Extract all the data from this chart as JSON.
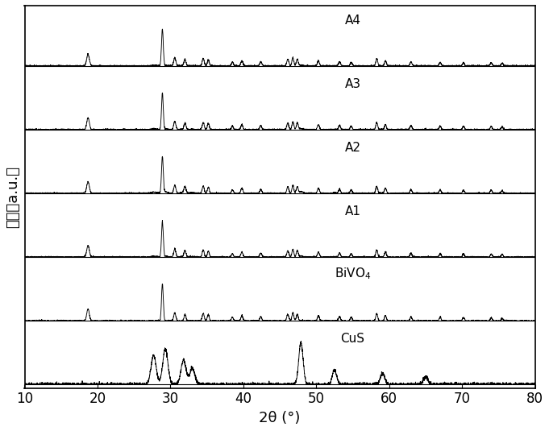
{
  "title": "",
  "xlabel": "2θ (°)",
  "ylabel": "强度（a.u.）",
  "xlim": [
    10,
    80
  ],
  "labels": [
    "CuS",
    "BiVO$_4$",
    "A1",
    "A2",
    "A3",
    "A4"
  ],
  "offsets": [
    0.0,
    0.95,
    1.9,
    2.85,
    3.8,
    4.75
  ],
  "line_color": "black",
  "background_color": "white",
  "tick_fontsize": 12,
  "label_fontsize": 13,
  "pattern_scale": 0.55,
  "cus_scale": 0.65
}
